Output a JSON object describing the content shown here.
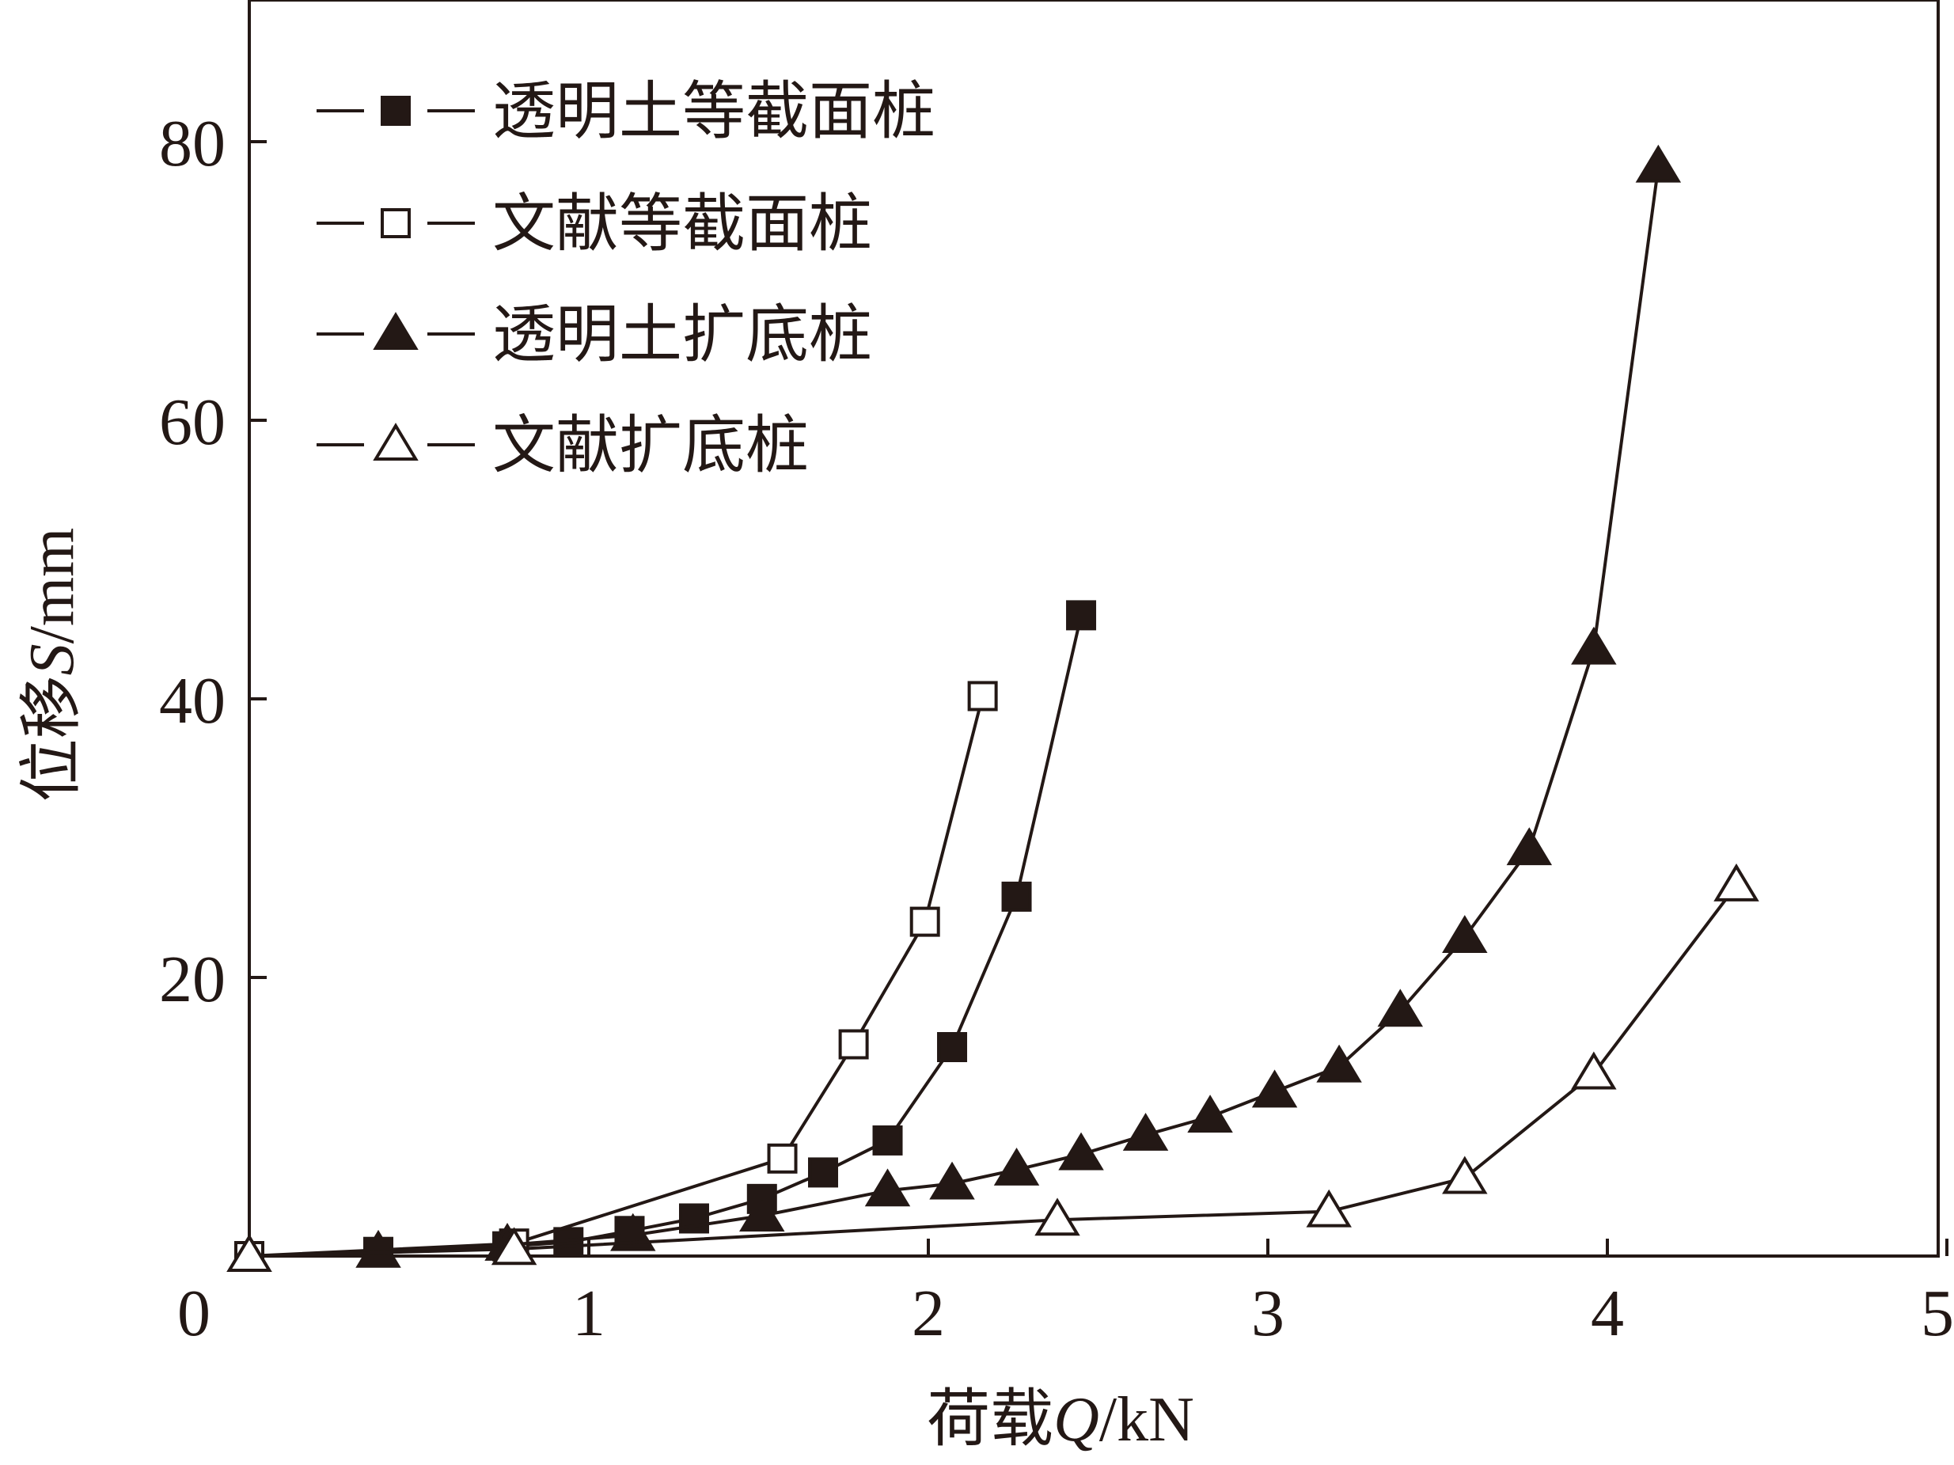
{
  "chart_data": {
    "type": "line",
    "xlabel": {
      "prefix": "荷载",
      "symbol": "Q",
      "unit": "/kN"
    },
    "ylabel": {
      "prefix": "位移",
      "symbol": "S",
      "unit": "/mm"
    },
    "xlim": [
      0,
      5
    ],
    "ylim": [
      0,
      90
    ],
    "x_ticks": [
      0,
      1,
      2,
      3,
      4,
      5
    ],
    "y_ticks": [
      20,
      40,
      60,
      80
    ],
    "grid": false,
    "legend_position": "top-left",
    "series": [
      {
        "name": "透明土等截面桩",
        "marker": "square",
        "filled": true,
        "x": [
          0.0,
          0.38,
          0.76,
          0.94,
          1.12,
          1.31,
          1.51,
          1.69,
          1.88,
          2.07,
          2.26,
          2.45
        ],
        "y": [
          0.0,
          0.3,
          0.7,
          1.0,
          1.8,
          2.7,
          4.1,
          6.0,
          8.3,
          15.0,
          25.8,
          46.0
        ]
      },
      {
        "name": "文献等截面桩",
        "marker": "square",
        "filled": false,
        "x": [
          0.0,
          0.78,
          1.57,
          1.78,
          1.99,
          2.16
        ],
        "y": [
          0.0,
          0.9,
          7.0,
          15.2,
          24.0,
          40.2
        ]
      },
      {
        "name": "透明土扩底桩",
        "marker": "triangle",
        "filled": true,
        "x": [
          0.0,
          0.38,
          0.76,
          1.13,
          1.51,
          1.88,
          2.07,
          2.26,
          2.45,
          2.64,
          2.83,
          3.02,
          3.21,
          3.39,
          3.58,
          3.77,
          3.96,
          4.15
        ],
        "y": [
          0.0,
          0.3,
          0.8,
          1.5,
          2.9,
          4.7,
          5.2,
          6.2,
          7.3,
          8.7,
          10.0,
          11.8,
          13.6,
          17.6,
          22.9,
          29.2,
          43.6,
          78.2
        ]
      },
      {
        "name": "文献扩底桩",
        "marker": "triangle",
        "filled": false,
        "x": [
          0.0,
          0.78,
          2.38,
          3.18,
          3.58,
          3.96,
          4.38
        ],
        "y": [
          0.0,
          0.5,
          2.6,
          3.2,
          5.6,
          13.1,
          26.6
        ]
      }
    ]
  }
}
